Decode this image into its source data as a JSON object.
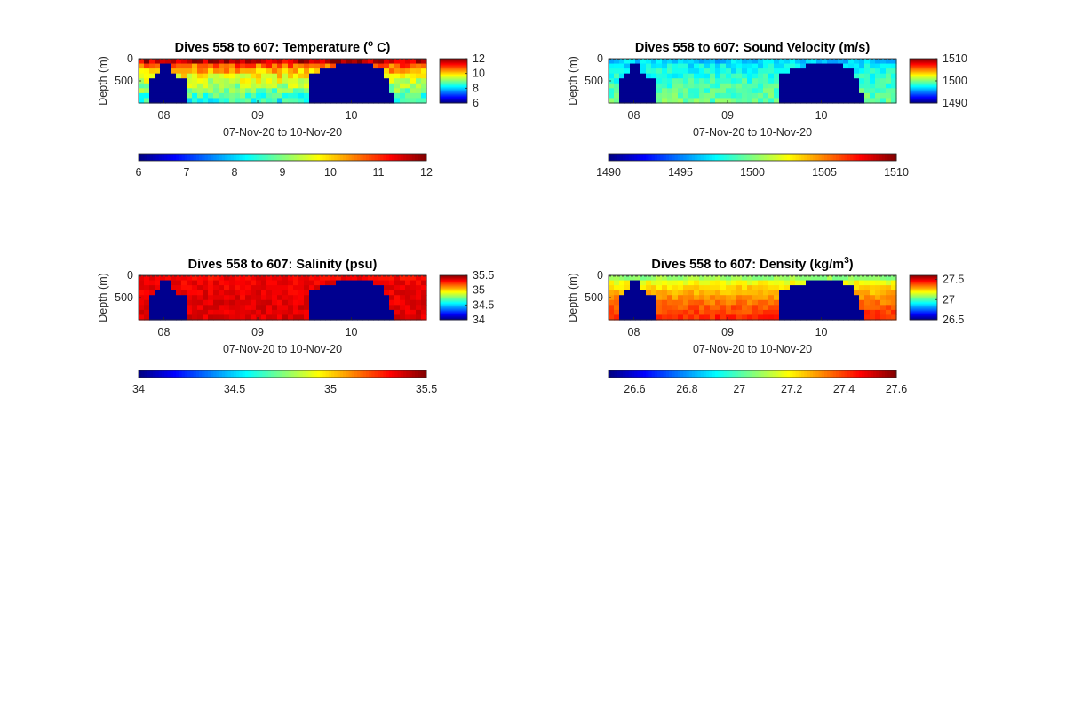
{
  "chart_data": [
    {
      "type": "heatmap",
      "title_prefix": "Dives 558 to 607: ",
      "title_main": "Temperature (",
      "title_sup": "o",
      "title_end": " C)",
      "xlabel": "07-Nov-20 to 10-Nov-20",
      "ylabel": "Depth (m)",
      "yticks": [
        0,
        500
      ],
      "ylim": [
        0,
        1000
      ],
      "xticks": [
        "08",
        "09",
        "10"
      ],
      "xtick_positions_days": [
        1,
        2,
        3
      ],
      "xlim_days": [
        0.73,
        3.8
      ],
      "clim": [
        6,
        12
      ],
      "colorbar_right_ticks": [
        12,
        10,
        8,
        6
      ],
      "colorbar_bottom_ticks": [
        6,
        7,
        8,
        9,
        10,
        11,
        12
      ],
      "surface": 11.6,
      "deep": 8.4,
      "variation": 0.5,
      "fill_color": "#00008f"
    },
    {
      "type": "heatmap",
      "title_prefix": "Dives 558 to 607: ",
      "title_main": "Sound Velocity (m/s)",
      "title_sup": "",
      "title_end": "",
      "xlabel": "07-Nov-20 to 10-Nov-20",
      "ylabel": "Depth (m)",
      "yticks": [
        0,
        500
      ],
      "ylim": [
        0,
        1000
      ],
      "xticks": [
        "08",
        "09",
        "10"
      ],
      "xtick_positions_days": [
        1,
        2,
        3
      ],
      "xlim_days": [
        0.73,
        3.8
      ],
      "clim": [
        1490,
        1510
      ],
      "colorbar_right_ticks": [
        1510,
        1500,
        1490
      ],
      "colorbar_bottom_ticks": [
        1490,
        1495,
        1500,
        1505,
        1510
      ],
      "surface": 1496.5,
      "deep": 1499.5,
      "variation": 1.2,
      "fill_color": "#00008f"
    },
    {
      "type": "heatmap",
      "title_prefix": "Dives 558 to 607: ",
      "title_main": "Salinity (psu)",
      "title_sup": "",
      "title_end": "",
      "xlabel": "07-Nov-20 to 10-Nov-20",
      "ylabel": "Depth (m)",
      "yticks": [
        0,
        500
      ],
      "ylim": [
        0,
        1000
      ],
      "xticks": [
        "08",
        "09",
        "10"
      ],
      "xtick_positions_days": [
        1,
        2,
        3
      ],
      "xlim_days": [
        0.73,
        3.8
      ],
      "clim": [
        34,
        35.5
      ],
      "colorbar_right_ticks": [
        35.5,
        35,
        34.5,
        34
      ],
      "colorbar_bottom_ticks": [
        34,
        34.5,
        35,
        35.5
      ],
      "surface": 35.32,
      "deep": 35.36,
      "variation": 0.05,
      "fill_color": "#00008f"
    },
    {
      "type": "heatmap",
      "title_prefix": "Dives 558 to 607: ",
      "title_main": "Density (kg/m",
      "title_sup": "3",
      "title_end": ")",
      "xlabel": "07-Nov-20 to 10-Nov-20",
      "ylabel": "Depth (m)",
      "yticks": [
        0,
        500
      ],
      "ylim": [
        0,
        1000
      ],
      "xticks": [
        "08",
        "09",
        "10"
      ],
      "xtick_positions_days": [
        1,
        2,
        3
      ],
      "xlim_days": [
        0.73,
        3.8
      ],
      "clim": [
        26.5,
        27.6
      ],
      "colorbar_right_ticks": [
        27.5,
        27,
        26.5
      ],
      "colorbar_bottom_ticks": [
        26.6,
        26.8,
        27,
        27.2,
        27.4,
        27.6
      ],
      "surface": 27.08,
      "deep": 27.42,
      "variation": 0.04,
      "fill_color": "#00008f"
    }
  ]
}
